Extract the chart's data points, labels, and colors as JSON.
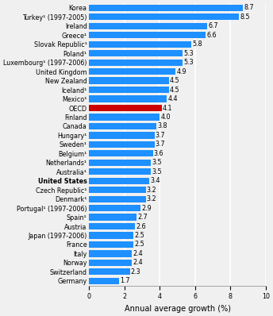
{
  "categories": [
    "Korea",
    "Turkey¹ (1997-2005)",
    "Ireland",
    "Greece¹",
    "Slovak Republic¹",
    "Poland¹",
    "Luxembourg¹ (1997-2006)",
    "United Kingdom",
    "New Zealand",
    "Iceland¹",
    "Mexico¹",
    "OECD",
    "Finland",
    "Canada",
    "Hungary¹",
    "Sweden¹",
    "Belgium¹",
    "Netherlands¹",
    "Australia¹",
    "United States",
    "Czech Republic¹",
    "Denmark¹",
    "Portugal¹ (1997-2006)",
    "Spain¹",
    "Austria",
    "Japan (1997-2006)",
    "France",
    "Italy",
    "Norway",
    "Switzerland",
    "Germany"
  ],
  "values": [
    8.7,
    8.5,
    6.7,
    6.6,
    5.8,
    5.3,
    5.3,
    4.9,
    4.5,
    4.5,
    4.4,
    4.1,
    4.0,
    3.8,
    3.7,
    3.7,
    3.6,
    3.5,
    3.5,
    3.4,
    3.2,
    3.2,
    2.9,
    2.7,
    2.6,
    2.5,
    2.5,
    2.4,
    2.4,
    2.3,
    1.7
  ],
  "bar_colors": [
    "#1e90ff",
    "#1e90ff",
    "#1e90ff",
    "#1e90ff",
    "#1e90ff",
    "#1e90ff",
    "#1e90ff",
    "#1e90ff",
    "#1e90ff",
    "#1e90ff",
    "#1e90ff",
    "#cc0000",
    "#1e90ff",
    "#1e90ff",
    "#1e90ff",
    "#1e90ff",
    "#1e90ff",
    "#1e90ff",
    "#1e90ff",
    "#1e90ff",
    "#1e90ff",
    "#1e90ff",
    "#1e90ff",
    "#1e90ff",
    "#1e90ff",
    "#1e90ff",
    "#1e90ff",
    "#1e90ff",
    "#1e90ff",
    "#1e90ff",
    "#1e90ff"
  ],
  "xlabel": "Annual average growth (%)",
  "xlim": [
    0,
    10
  ],
  "xticks": [
    0,
    2,
    4,
    6,
    8,
    10
  ],
  "background_color": "#f0f0f0",
  "bar_height": 0.72,
  "label_fontsize": 5.8,
  "value_fontsize": 5.8,
  "xlabel_fontsize": 7.0,
  "oecd_index": 11,
  "grid_color": "#ffffff",
  "grid_linewidth": 1.2
}
